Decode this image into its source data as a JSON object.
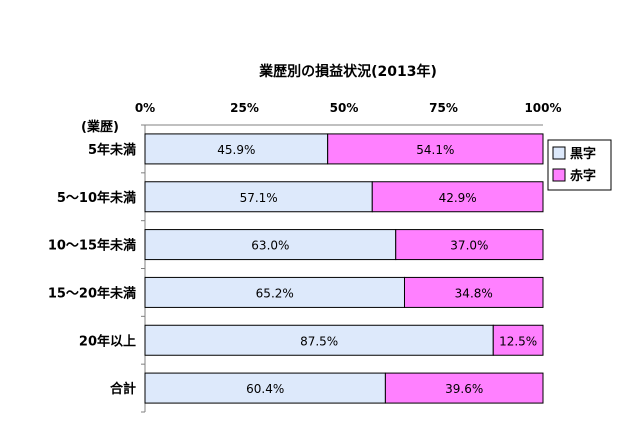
{
  "chart_data": {
    "type": "bar",
    "orientation": "horizontal",
    "stacked": true,
    "title": "業歴別の損益状況(2013年)",
    "ylabel": "(業歴)",
    "xlabel": "",
    "xlim": [
      0,
      100
    ],
    "x_ticks": [
      "0%",
      "25%",
      "50%",
      "75%",
      "100%"
    ],
    "categories": [
      "5年未満",
      "5～10年未満",
      "10～15年未満",
      "15～20年未満",
      "20年以上",
      "合計"
    ],
    "series": [
      {
        "name": "黒字",
        "values": [
          45.9,
          57.1,
          63.0,
          65.2,
          87.5,
          60.4
        ],
        "labels": [
          "45.9%",
          "57.1%",
          "63.0%",
          "65.2%",
          "87.5%",
          "60.4%"
        ],
        "color": "#dde9fb"
      },
      {
        "name": "赤字",
        "values": [
          54.1,
          42.9,
          37.0,
          34.8,
          12.5,
          39.6
        ],
        "labels": [
          "54.1%",
          "42.9%",
          "37.0%",
          "34.8%",
          "12.5%",
          "39.6%"
        ],
        "color": "#ff80ff"
      }
    ],
    "grid": false,
    "legend_position": "right"
  }
}
